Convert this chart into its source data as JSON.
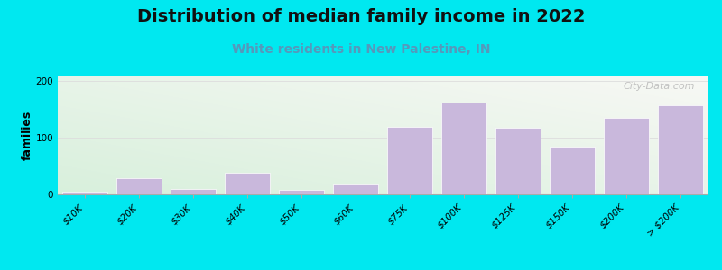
{
  "title": "Distribution of median family income in 2022",
  "subtitle": "White residents in New Palestine, IN",
  "ylabel": "families",
  "categories": [
    "$10K",
    "$20K",
    "$30K",
    "$40K",
    "$50K",
    "$60K",
    "$75K",
    "$100K",
    "$125K",
    "$150K",
    "$200K",
    "> $200K"
  ],
  "values": [
    5,
    28,
    10,
    38,
    8,
    18,
    120,
    163,
    118,
    85,
    135,
    158
  ],
  "bar_color": "#c9b8dc",
  "bar_edge_color": "#ffffff",
  "background_color": "#00e8f0",
  "plot_bg_left_color": "#d8f0dc",
  "plot_bg_right_color": "#f8f8f5",
  "title_fontsize": 14,
  "subtitle_fontsize": 10,
  "subtitle_color": "#5599bb",
  "ylabel_fontsize": 9,
  "tick_fontsize": 7.5,
  "yticks": [
    0,
    100,
    200
  ],
  "ylim": [
    0,
    210
  ],
  "watermark_text": "City-Data.com",
  "watermark_color": "#b8b8b8"
}
